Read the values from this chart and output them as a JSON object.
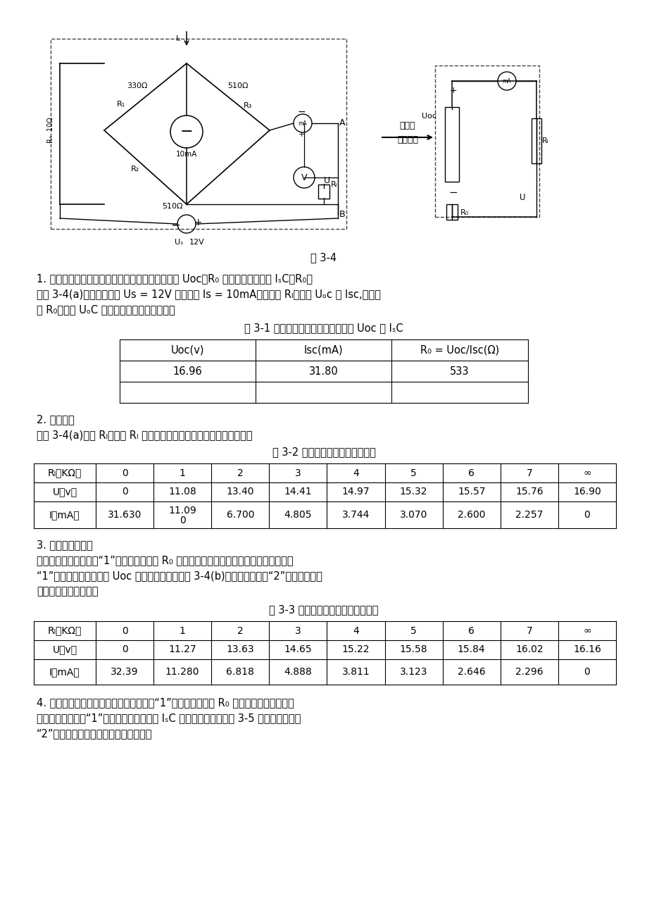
{
  "background_color": "#ffffff",
  "fig_caption": "图 3-4",
  "section1_title": "1. 用开路电压、短路电流法测定戴维南等效电路的 Uoc、R₀ 和诺顿等效电路的 IₛC、R₀。",
  "section1_line2": "按图 3-4(a)接入稳压电源 Us = 12V 和恒流源 Is = 10mA，不接入 Rₗ。测出 Uₒc 和 Isc,并计算",
  "section1_line3": "出 R₀。（测 UₒC 时，不接入直流毫安表。）",
  "table1_title": "表 3-1 用开路电压、短路电流法测定 Uoc 和 IₛC",
  "table1_headers": [
    "Uoc(v)",
    "Isc(mA)",
    "R₀ = Uoc/Isc(Ω)"
  ],
  "table1_data": [
    [
      "16.96",
      "31.80",
      "533"
    ]
  ],
  "section2_title": "2. 负载实验",
  "section2_line1": "按图 3-4(a)接入 Rₗ。改变 Rₗ 阻値，测量有源二端网络的外特性曲线。",
  "table2_title": "表 3-2 测量有源二端网络的外特性",
  "table2_headers": [
    "Rₗ（KΩ）",
    "0",
    "1",
    "2",
    "3",
    "4",
    "5",
    "6",
    "7",
    "∞"
  ],
  "table2_row1": [
    "U（v）",
    "0",
    "11.08",
    "13.40",
    "14.41",
    "14.97",
    "15.32",
    "15.57",
    "15.76",
    "16.90"
  ],
  "table2_row2": [
    "I（mA）",
    "31.630",
    "11.09|0",
    "6.700",
    "4.805",
    "3.744",
    "3.070",
    "2.600",
    "2.257",
    "0"
  ],
  "section3_title": "3. 验证戴维南定理",
  "section3_line1": "从电阻笱上取得按步骤“1”所得的等效电阻 R₀ 之値，然后令其与直流稳压电源（调到步骤",
  "section3_line2": "“1”时所测得的开路电压 Uoc 之値）相串联，如图 3-4(b)所示，便照步骤“2”测其外特性，",
  "section3_line3": "对戴氏定理进行验证。",
  "table3_title": "表 3-3 测量戴维南等效电路的外特性",
  "table3_headers": [
    "Rₗ（KΩ）",
    "0",
    "1",
    "2",
    "3",
    "4",
    "5",
    "6",
    "7",
    "∞"
  ],
  "table3_row1": [
    "U（v）",
    "0",
    "11.27",
    "13.63",
    "14.65",
    "15.22",
    "15.58",
    "15.84",
    "16.02",
    "16.16"
  ],
  "table3_row2": [
    "I（mA）",
    "32.39",
    "11.280",
    "6.818",
    "4.888",
    "3.811",
    "3.123",
    "2.646",
    "2.296",
    "0"
  ],
  "section4_title": "4. 验证诺顿定理：从电阻笱上取得按步骤“1”所得的等效电阻 R₀ 之値，然后令其与直流",
  "section4_line1": "恒流源（调到步骤“1”时所测得的短路电流 IₛC 之値）相并联，如图 3-5 所示，侾照步骤",
  "section4_line2": "“2”测其外特性，对诺顿定理进行验证。"
}
